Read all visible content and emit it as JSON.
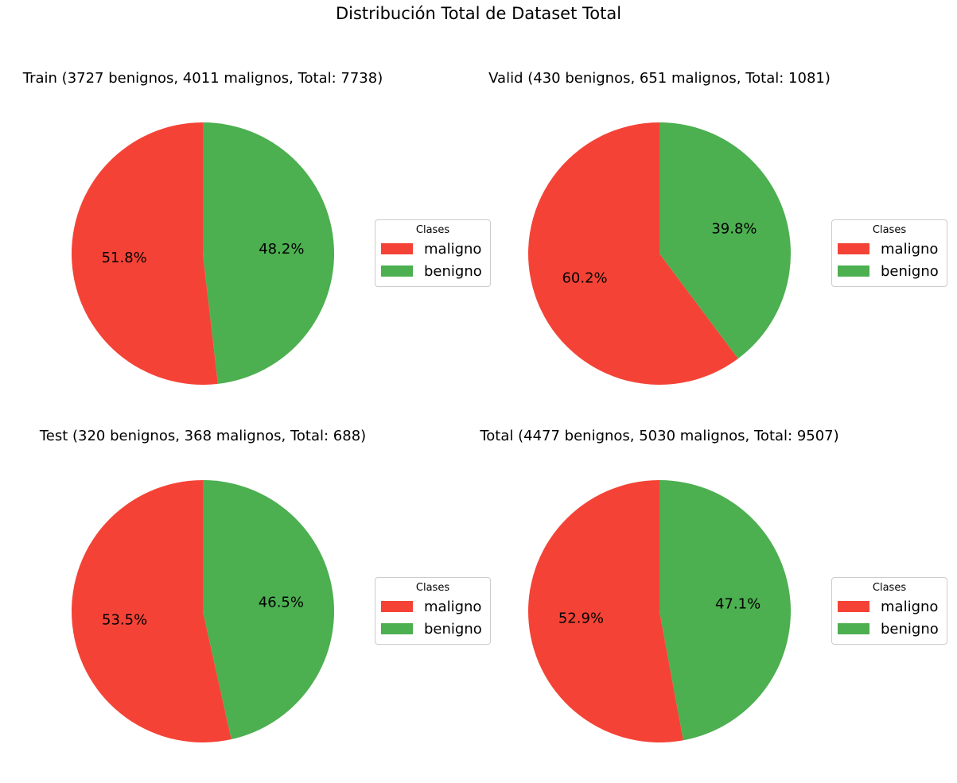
{
  "figure": {
    "title": "Distribución Total de Dataset Total"
  },
  "chart_data": [
    {
      "type": "pie",
      "title": "Train (3727 benignos, 4011 malignos, Total: 7738)",
      "labels": [
        "maligno",
        "benigno"
      ],
      "values": [
        4011,
        3727
      ],
      "percent_labels": [
        "51.8%",
        "48.2%"
      ],
      "colors": [
        "#F44336",
        "#4CAF50"
      ],
      "legend_title": "Clases",
      "legend_location": "center-right"
    },
    {
      "type": "pie",
      "title": "Valid (430 benignos, 651 malignos, Total: 1081)",
      "labels": [
        "maligno",
        "benigno"
      ],
      "values": [
        651,
        430
      ],
      "percent_labels": [
        "60.2%",
        "39.8%"
      ],
      "colors": [
        "#F44336",
        "#4CAF50"
      ],
      "legend_title": "Clases",
      "legend_location": "center-right"
    },
    {
      "type": "pie",
      "title": "Test (320 benignos, 368 malignos, Total: 688)",
      "labels": [
        "maligno",
        "benigno"
      ],
      "values": [
        368,
        320
      ],
      "percent_labels": [
        "53.5%",
        "46.5%"
      ],
      "colors": [
        "#F44336",
        "#4CAF50"
      ],
      "legend_title": "Clases",
      "legend_location": "center-right"
    },
    {
      "type": "pie",
      "title": "Total (4477 benignos, 5030 malignos, Total: 9507)",
      "labels": [
        "maligno",
        "benigno"
      ],
      "values": [
        5030,
        4477
      ],
      "percent_labels": [
        "52.9%",
        "47.1%"
      ],
      "colors": [
        "#F44336",
        "#4CAF50"
      ],
      "legend_title": "Clases",
      "legend_location": "center-right"
    }
  ]
}
